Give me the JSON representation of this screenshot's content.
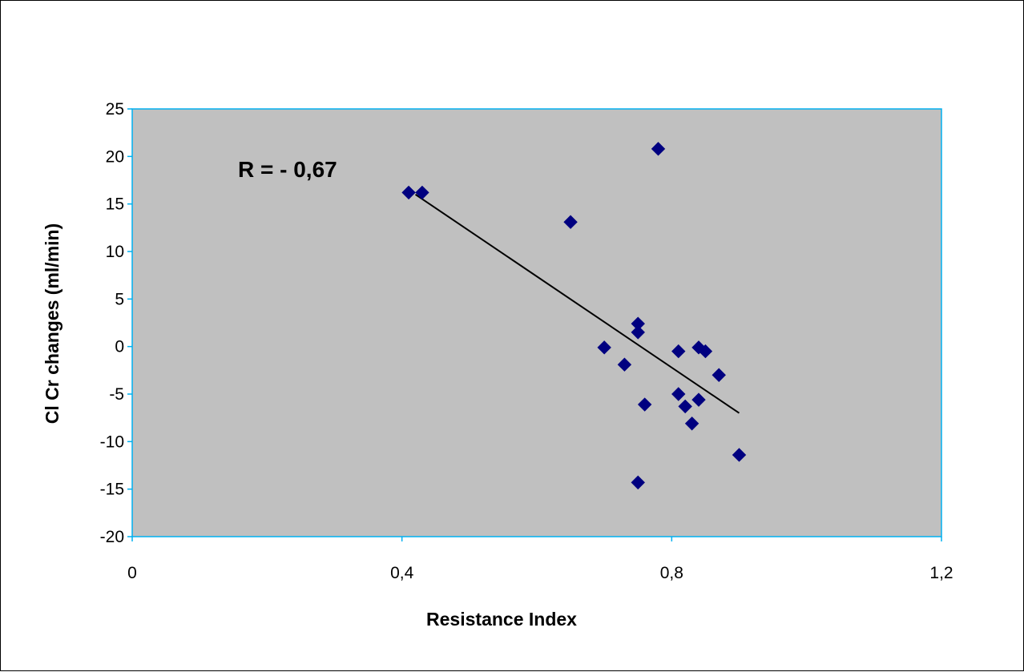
{
  "chart_data": {
    "type": "scatter",
    "title": "",
    "xlabel": "Resistance Index",
    "ylabel": "Cl Cr changes (ml/min)",
    "xlim": [
      0,
      1.2
    ],
    "ylim": [
      -20,
      25
    ],
    "x_ticks": [
      "0",
      "0,4",
      "0,8",
      "1,2"
    ],
    "x_tick_values": [
      0,
      0.4,
      0.8,
      1.2
    ],
    "y_ticks": [
      "25",
      "20",
      "15",
      "10",
      "5",
      "0",
      "-5",
      "-10",
      "-15",
      "-20"
    ],
    "y_tick_values": [
      25,
      20,
      15,
      10,
      5,
      0,
      -5,
      -10,
      -15,
      -20
    ],
    "annotation": "R = - 0,67",
    "grid": false,
    "legend": "none",
    "plot_background": "#c0c0c0",
    "plot_border_color": "#00b0f0",
    "marker_color": "#000080",
    "marker": "diamond",
    "points": [
      {
        "x": 0.41,
        "y": 16.2
      },
      {
        "x": 0.43,
        "y": 16.2
      },
      {
        "x": 0.65,
        "y": 13.1
      },
      {
        "x": 0.78,
        "y": 20.8
      },
      {
        "x": 0.75,
        "y": 2.4
      },
      {
        "x": 0.75,
        "y": 1.5
      },
      {
        "x": 0.7,
        "y": -0.1
      },
      {
        "x": 0.73,
        "y": -1.9
      },
      {
        "x": 0.76,
        "y": -6.1
      },
      {
        "x": 0.75,
        "y": -14.3
      },
      {
        "x": 0.81,
        "y": -0.5
      },
      {
        "x": 0.84,
        "y": -0.1
      },
      {
        "x": 0.85,
        "y": -0.5
      },
      {
        "x": 0.87,
        "y": -3.0
      },
      {
        "x": 0.81,
        "y": -5.0
      },
      {
        "x": 0.84,
        "y": -5.6
      },
      {
        "x": 0.82,
        "y": -6.3
      },
      {
        "x": 0.83,
        "y": -8.1
      },
      {
        "x": 0.9,
        "y": -11.4
      }
    ],
    "trendline": {
      "type": "linear",
      "color": "#000000",
      "points": [
        {
          "x": 0.42,
          "y": 16.0
        },
        {
          "x": 0.9,
          "y": -7.0
        }
      ]
    }
  }
}
